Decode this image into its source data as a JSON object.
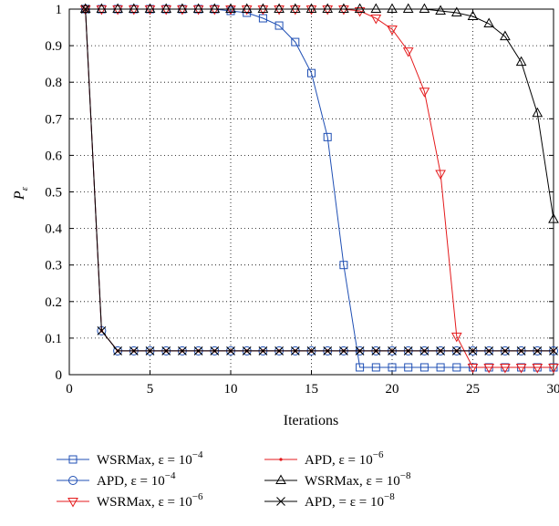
{
  "chart_data": {
    "type": "line",
    "xlabel": "Iterations",
    "ylabel": "P",
    "ylabel_sub": "ε",
    "xlim": [
      0,
      30
    ],
    "ylim": [
      0,
      1
    ],
    "xticks": [
      0,
      5,
      10,
      15,
      20,
      25,
      30
    ],
    "yticks": [
      0,
      0.1,
      0.2,
      0.3,
      0.4,
      0.5,
      0.6,
      0.7,
      0.8,
      0.9,
      1
    ],
    "grid": true,
    "legend_position": "bottom",
    "x": [
      1,
      2,
      3,
      4,
      5,
      6,
      7,
      8,
      9,
      10,
      11,
      12,
      13,
      14,
      15,
      16,
      17,
      18,
      19,
      20,
      21,
      22,
      23,
      24,
      25,
      26,
      27,
      28,
      29,
      30
    ],
    "series": [
      {
        "name": "WSRMax, ε = 10",
        "exp": "−4",
        "color": "#1f4fb4",
        "marker": "square",
        "values": [
          1,
          1,
          1,
          1,
          1,
          1,
          1,
          1,
          1,
          0.995,
          0.99,
          0.975,
          0.955,
          0.91,
          0.825,
          0.65,
          0.3,
          0.02,
          0.02,
          0.02,
          0.02,
          0.02,
          0.02,
          0.02,
          0.02,
          0.02,
          0.02,
          0.02,
          0.02,
          0.02
        ]
      },
      {
        "name": "APD, ε = 10",
        "exp": "−4",
        "color": "#1f4fb4",
        "marker": "circle",
        "values": [
          1,
          0.12,
          0.065,
          0.065,
          0.065,
          0.065,
          0.065,
          0.065,
          0.065,
          0.065,
          0.065,
          0.065,
          0.065,
          0.065,
          0.065,
          0.065,
          0.065,
          0.065,
          0.065,
          0.065,
          0.065,
          0.065,
          0.065,
          0.065,
          0.065,
          0.065,
          0.065,
          0.065,
          0.065,
          0.065
        ]
      },
      {
        "name": "WSRMax, ε = 10",
        "exp": "−6",
        "color": "#e41a1c",
        "marker": "triangle-down",
        "values": [
          1,
          1,
          1,
          1,
          1,
          1,
          1,
          1,
          1,
          1,
          1,
          1,
          1,
          1,
          1,
          1,
          1,
          0.995,
          0.975,
          0.945,
          0.885,
          0.775,
          0.55,
          0.105,
          0.02,
          0.02,
          0.02,
          0.02,
          0.02,
          0.02
        ]
      },
      {
        "name": "APD, ε = 10",
        "exp": "−6",
        "color": "#e41a1c",
        "marker": "dot",
        "values": [
          1,
          0.12,
          0.065,
          0.065,
          0.065,
          0.065,
          0.065,
          0.065,
          0.065,
          0.065,
          0.065,
          0.065,
          0.065,
          0.065,
          0.065,
          0.065,
          0.065,
          0.065,
          0.065,
          0.065,
          0.065,
          0.065,
          0.065,
          0.065,
          0.065,
          0.065,
          0.065,
          0.065,
          0.065,
          0.065
        ]
      },
      {
        "name": "WSRMax, ε = 10",
        "exp": "−8",
        "color": "#000000",
        "marker": "triangle-up",
        "values": [
          1,
          1,
          1,
          1,
          1,
          1,
          1,
          1,
          1,
          1,
          1,
          1,
          1,
          1,
          1,
          1,
          1,
          1,
          1,
          1,
          1,
          1,
          0.995,
          0.99,
          0.98,
          0.96,
          0.925,
          0.855,
          0.715,
          0.425
        ]
      },
      {
        "name": "APD, = ε = 10",
        "exp": "−8",
        "color": "#000000",
        "marker": "x",
        "values": [
          1,
          0.12,
          0.065,
          0.065,
          0.065,
          0.065,
          0.065,
          0.065,
          0.065,
          0.065,
          0.065,
          0.065,
          0.065,
          0.065,
          0.065,
          0.065,
          0.065,
          0.065,
          0.065,
          0.065,
          0.065,
          0.065,
          0.065,
          0.065,
          0.065,
          0.065,
          0.065,
          0.065,
          0.065,
          0.065
        ]
      }
    ]
  }
}
